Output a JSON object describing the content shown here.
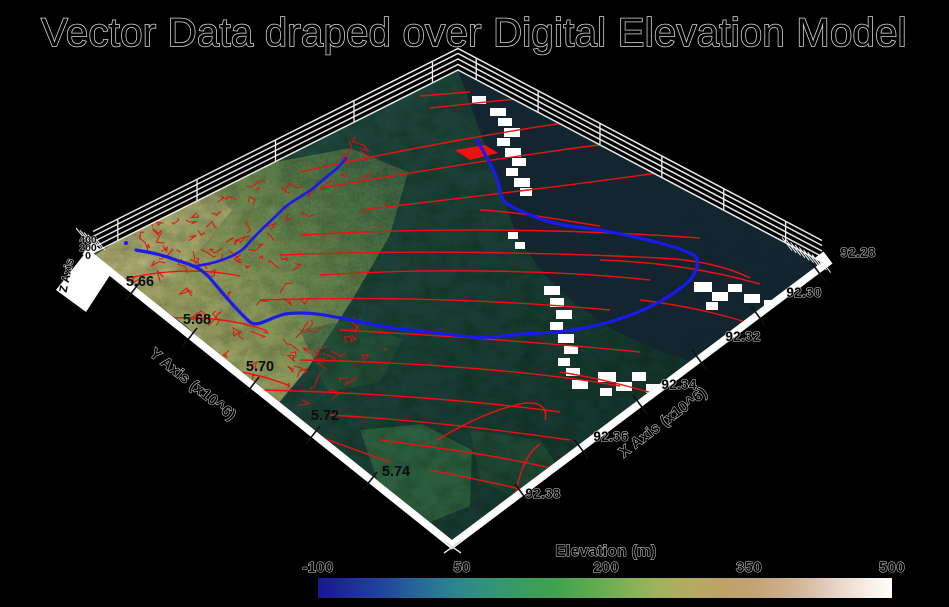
{
  "title": "Vector Data draped over Digital Elevation Model",
  "axes": {
    "x": {
      "label": "X Axis (x10^6)",
      "ticks": [
        "92.28",
        "92.30",
        "92.32",
        "92.34",
        "92.36",
        "92.38"
      ]
    },
    "y": {
      "label": "Y Axis (x10^6)",
      "ticks": [
        "5.66",
        "5.68",
        "5.70",
        "5.72",
        "5.74"
      ]
    },
    "z": {
      "label": "Z Axis",
      "ticks": [
        "400",
        "200",
        "0"
      ]
    }
  },
  "colorbar": {
    "title": "Elevation (m)",
    "ticks": [
      "-100",
      "50",
      "200",
      "350",
      "500"
    ],
    "min": -100,
    "max": 500,
    "colors": [
      "#16188f",
      "#1d2f98",
      "#21489b",
      "#27689a",
      "#2c8490",
      "#31927b",
      "#389c60",
      "#41a14e",
      "#5aa94e",
      "#7cb055",
      "#9db35c",
      "#b3ab60",
      "#bda266",
      "#c5a476",
      "#cfb191",
      "#e0c9b8",
      "#f3e7de",
      "#fffdfb"
    ]
  },
  "overlays": {
    "vector_color": "#ee1111",
    "river_color": "#1a1aee",
    "nodata_color": "#ffffff",
    "ocean_color": "#14242f"
  },
  "chart_data": {
    "type": "surface",
    "title": "Vector Data draped over Digital Elevation Model",
    "view": "3d-perspective",
    "x_axis": {
      "label": "X Axis (x10^6)",
      "tick_values": [
        92.28,
        92.3,
        92.32,
        92.34,
        92.36,
        92.38
      ],
      "range": [
        92.28,
        92.38
      ]
    },
    "y_axis": {
      "label": "Y Axis (x10^6)",
      "tick_values": [
        5.66,
        5.68,
        5.7,
        5.72,
        5.74
      ],
      "range": [
        5.66,
        5.74
      ]
    },
    "z_axis": {
      "label": "Z Axis",
      "tick_values": [
        0,
        200,
        400
      ]
    },
    "colorbar": {
      "label": "Elevation (m)",
      "range": [
        -100,
        500
      ],
      "tick_values": [
        -100,
        50,
        200,
        350,
        500
      ],
      "colormap": [
        "#16188f",
        "#1d2f98",
        "#21489b",
        "#27689a",
        "#2c8490",
        "#31927b",
        "#389c60",
        "#41a14e",
        "#5aa94e",
        "#7cb055",
        "#9db35c",
        "#b3ab60",
        "#bda266",
        "#c5a476",
        "#cfb191",
        "#e0c9b8",
        "#f3e7de",
        "#fffdfb"
      ]
    },
    "layers": [
      {
        "name": "digital-elevation-model",
        "type": "draped-raster"
      },
      {
        "name": "fault-road-vectors",
        "type": "polyline",
        "color": "#ee1111"
      },
      {
        "name": "river-vectors",
        "type": "polyline",
        "color": "#1a1aee"
      },
      {
        "name": "ocean",
        "type": "region",
        "color": "#14242f"
      },
      {
        "name": "no-data-cloud-patches",
        "type": "region",
        "color": "#ffffff"
      }
    ],
    "legend_position": "none",
    "grid": "3d-box-fence"
  }
}
